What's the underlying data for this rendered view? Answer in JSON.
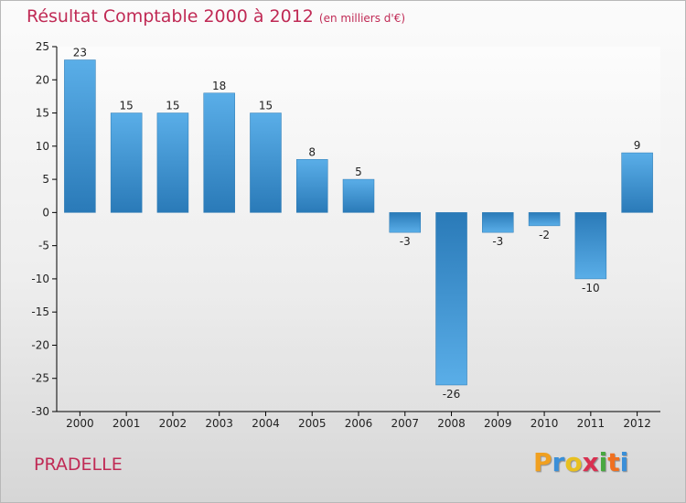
{
  "chart_data": {
    "type": "bar",
    "title": "Résultat Comptable 2000 à 2012",
    "subtitle": "(en milliers d'€)",
    "categories": [
      "2000",
      "2001",
      "2002",
      "2003",
      "2004",
      "2005",
      "2006",
      "2007",
      "2008",
      "2009",
      "2010",
      "2011",
      "2012"
    ],
    "values": [
      23,
      15,
      15,
      18,
      15,
      8,
      5,
      -3,
      -26,
      -3,
      -2,
      -10,
      9
    ],
    "ylim": [
      -30,
      25
    ],
    "yticks": [
      25,
      20,
      15,
      10,
      5,
      0,
      -5,
      -10,
      -15,
      -20,
      -25,
      -30
    ],
    "grid": false,
    "xlabel": "",
    "ylabel": ""
  },
  "footer": {
    "place": "PRADELLE"
  },
  "logo": {
    "text": "Proxiti",
    "letters": [
      "P",
      "r",
      "o",
      "x",
      "i",
      "t",
      "i"
    ],
    "letter_colors": [
      "#f0a020",
      "#3a8fd8",
      "#e8c020",
      "#d83050",
      "#48a840",
      "#f07020",
      "#3a8fd8"
    ]
  },
  "colors": {
    "title": "#c02a55",
    "bar_top": "#5aaee8",
    "bar_bottom": "#2a7ab8",
    "axis": "#000000"
  }
}
